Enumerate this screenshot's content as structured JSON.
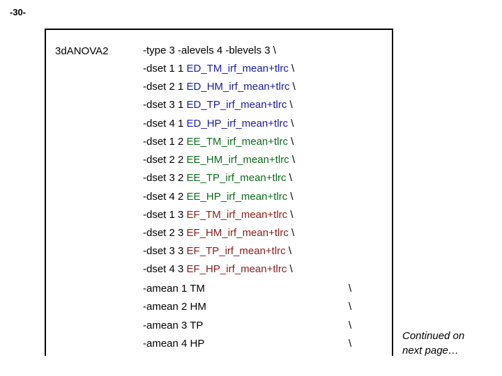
{
  "page_number": "-30-",
  "command": "3dANOVA2",
  "options_line": "-type 3 -alevels 4 -blevels 3 \\",
  "dsets": [
    {
      "prefix": "-dset 1 1 ",
      "name": "ED_TM_irf_mean+tlrc",
      "suffix": " \\",
      "color": "#1a1aa6"
    },
    {
      "prefix": "-dset 2 1 ",
      "name": "ED_HM_irf_mean+tlrc",
      "suffix": " \\",
      "color": "#1a1aa6"
    },
    {
      "prefix": "-dset 3 1 ",
      "name": "ED_TP_irf_mean+tlrc",
      "suffix": " \\",
      "color": "#1a1aa6"
    },
    {
      "prefix": "-dset 4 1 ",
      "name": "ED_HP_irf_mean+tlrc",
      "suffix": " \\",
      "color": "#1a1aa6"
    },
    {
      "prefix": "-dset 1 2 ",
      "name": "EE_TM_irf_mean+tlrc",
      "suffix": " \\",
      "color": "#0b6b1a"
    },
    {
      "prefix": "-dset 2 2 ",
      "name": "EE_HM_irf_mean+tlrc",
      "suffix": " \\",
      "color": "#0b6b1a"
    },
    {
      "prefix": "-dset 3 2 ",
      "name": "EE_TP_irf_mean+tlrc",
      "suffix": " \\",
      "color": "#0b6b1a"
    },
    {
      "prefix": "-dset 4 2 ",
      "name": "EE_HP_irf_mean+tlrc",
      "suffix": " \\",
      "color": "#0b6b1a"
    },
    {
      "prefix": "-dset 1 3 ",
      "name": "EF_TM_irf_mean+tlrc",
      "suffix": " \\",
      "color": "#8b1a1a"
    },
    {
      "prefix": "-dset 2 3 ",
      "name": "EF_HM_irf_mean+tlrc",
      "suffix": " \\",
      "color": "#8b1a1a"
    },
    {
      "prefix": "-dset 3 3 ",
      "name": "EF_TP_irf_mean+tlrc",
      "suffix": " \\",
      "color": "#8b1a1a"
    },
    {
      "prefix": "-dset 4 3 ",
      "name": "EF_HP_irf_mean+tlrc",
      "suffix": " \\",
      "color": "#8b1a1a"
    }
  ],
  "ameans": [
    {
      "label": "-amean 1 TM",
      "cont": "\\"
    },
    {
      "label": "-amean 2 HM",
      "cont": "\\"
    },
    {
      "label": "-amean 3 TP",
      "cont": "\\"
    },
    {
      "label": "-amean 4 HP",
      "cont": "\\"
    }
  ],
  "continued_note": "Continued on next page…"
}
